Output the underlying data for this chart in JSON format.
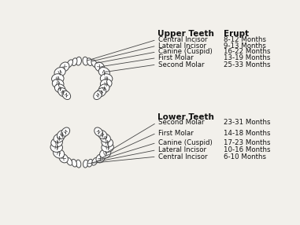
{
  "upper_title": "Upper Teeth",
  "lower_title": "Lower Teeth",
  "erupt_header": "Erupt",
  "upper_teeth": [
    {
      "name": "Central Incisor",
      "erupt": "8-12 Months"
    },
    {
      "name": "Lateral Incisor",
      "erupt": "9-13 Months"
    },
    {
      "name": "Canine (Cuspid)",
      "erupt": "16-22 Months"
    },
    {
      "name": "First Molar",
      "erupt": "13-19 Months"
    },
    {
      "name": "Second Molar",
      "erupt": "25-33 Months"
    }
  ],
  "lower_teeth": [
    {
      "name": "Second Molar",
      "erupt": "23-31 Months"
    },
    {
      "name": "First Molar",
      "erupt": "14-18 Months"
    },
    {
      "name": "Canine (Cuspid)",
      "erupt": "17-23 Months"
    },
    {
      "name": "Lateral Incisor",
      "erupt": "10-16 Months"
    },
    {
      "name": "Central Incisor",
      "erupt": "6-10 Months"
    }
  ],
  "bg_color": "#f2f0eb",
  "tooth_facecolor": "#ffffff",
  "tooth_edgecolor": "#444444",
  "line_color": "#444444",
  "text_color": "#111111"
}
